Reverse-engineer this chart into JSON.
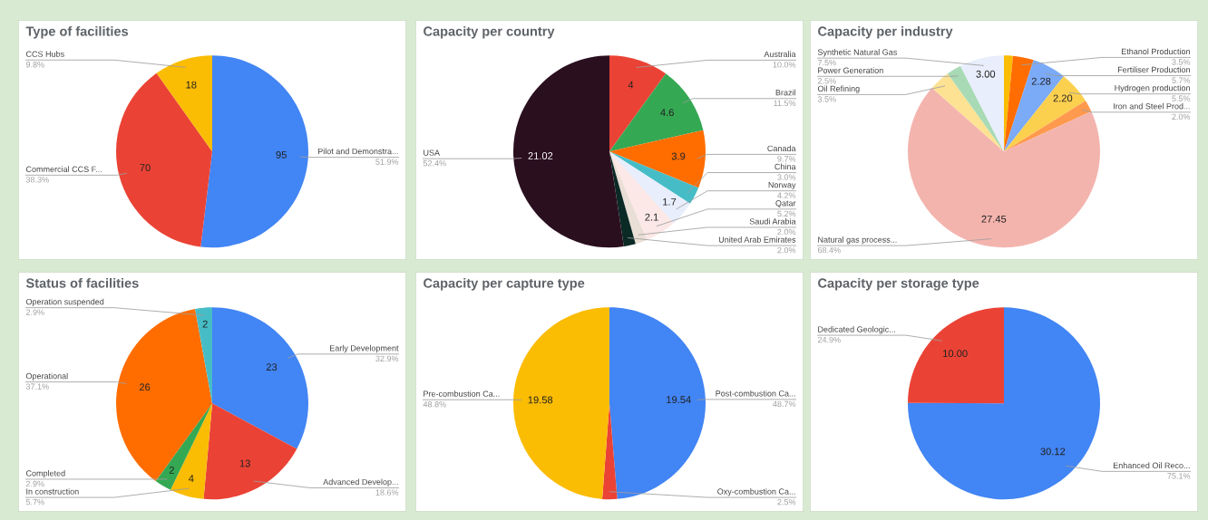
{
  "chart_data": [
    {
      "type": "pie",
      "title": "Type of facilities",
      "categories": [
        "Pilot and Demonstra...",
        "Commercial CCS F...",
        "CCS Hubs"
      ],
      "values": [
        95,
        70,
        18
      ],
      "colors": [
        "#4285f4",
        "#ea4335",
        "#fbbc04"
      ],
      "value_labels": [
        "95",
        "70",
        "18"
      ],
      "annotations": [
        "51.9%",
        "38.3%",
        "9.8%"
      ]
    },
    {
      "type": "pie",
      "title": "Capacity per country",
      "categories": [
        "Australia",
        "Brazil",
        "Canada",
        "China",
        "Norway",
        "Qatar",
        "Saudi Arabia",
        "United Arab Emirates",
        "USA"
      ],
      "values": [
        4,
        4.6,
        3.9,
        1.2,
        1.7,
        2.1,
        0.8,
        0.8,
        21.02
      ],
      "colors": [
        "#ea4335",
        "#34a853",
        "#ff6d01",
        "#46bdc6",
        "#e8eefb",
        "#fce8e6",
        "#eadfd6",
        "#0b2a26",
        "#2a0f1f"
      ],
      "value_labels": [
        "4",
        "4.6",
        "3.9",
        null,
        "1.7",
        "2.1",
        null,
        null,
        "21.02"
      ],
      "annotations": [
        "10.0%",
        "11.5%",
        "9.7%",
        "3.0%",
        "4.2%",
        "5.2%",
        "2.0%",
        "2.0%",
        "52.4%"
      ]
    },
    {
      "type": "pie",
      "title": "Capacity per industry",
      "categories": [
        null,
        "Ethanol Production",
        "Fertiliser Production",
        "Hydrogen production",
        "Iron and Steel Prod...",
        "Natural gas process...",
        "Oil Refining",
        "Power Generation",
        "Synthetic Natural Gas"
      ],
      "values": [
        0.6,
        1.4,
        2.28,
        2.2,
        0.8,
        27.45,
        1.4,
        1.0,
        3.0
      ],
      "colors": [
        "#fbbc04",
        "#ff6d01",
        "#7baaf7",
        "#fcd04f",
        "#ff994d",
        "#f4b4ae",
        "#fde293",
        "#a8dab5",
        "#e8eefb"
      ],
      "value_labels": [
        null,
        null,
        "2.28",
        "2.20",
        null,
        "27.45",
        null,
        null,
        "3.00"
      ],
      "annotations": [
        "3.5%",
        "5.7%",
        "5.5%",
        "2.0%",
        "68.4%",
        "3.5%",
        "2.5%",
        "7.5%"
      ]
    },
    {
      "type": "pie",
      "title": "Status of facilities",
      "categories": [
        "Early Development",
        "Advanced Develop...",
        "In construction",
        "Completed",
        "Operational",
        "Operation suspended"
      ],
      "values": [
        23,
        13,
        4,
        2,
        26,
        2
      ],
      "colors": [
        "#4285f4",
        "#ea4335",
        "#fbbc04",
        "#34a853",
        "#ff6d01",
        "#46bdc6"
      ],
      "value_labels": [
        "23",
        "13",
        "4",
        "2",
        "26",
        "2"
      ],
      "annotations": [
        "32.9%",
        "18.6%",
        "5.7%",
        "2.9%",
        "37.1%",
        "2.9%"
      ]
    },
    {
      "type": "pie",
      "title": "Capacity per capture type",
      "categories": [
        "Post-combustion Ca...",
        "Oxy-combustion Ca...",
        "Pre-combustion Ca..."
      ],
      "values": [
        19.54,
        1.0,
        19.58
      ],
      "colors": [
        "#4285f4",
        "#ea4335",
        "#fbbc04"
      ],
      "value_labels": [
        "19.54",
        null,
        "19.58"
      ],
      "annotations": [
        "48.7%",
        "2.5%",
        "48.8%"
      ]
    },
    {
      "type": "pie",
      "title": "Capacity per storage type",
      "categories": [
        "Enhanced Oil Reco...",
        "Dedicated Geologic..."
      ],
      "values": [
        30.12,
        10.0
      ],
      "colors": [
        "#4285f4",
        "#ea4335"
      ],
      "value_labels": [
        "30.12",
        "10.00"
      ],
      "annotations": [
        "75.1%",
        "24.9%"
      ]
    }
  ]
}
